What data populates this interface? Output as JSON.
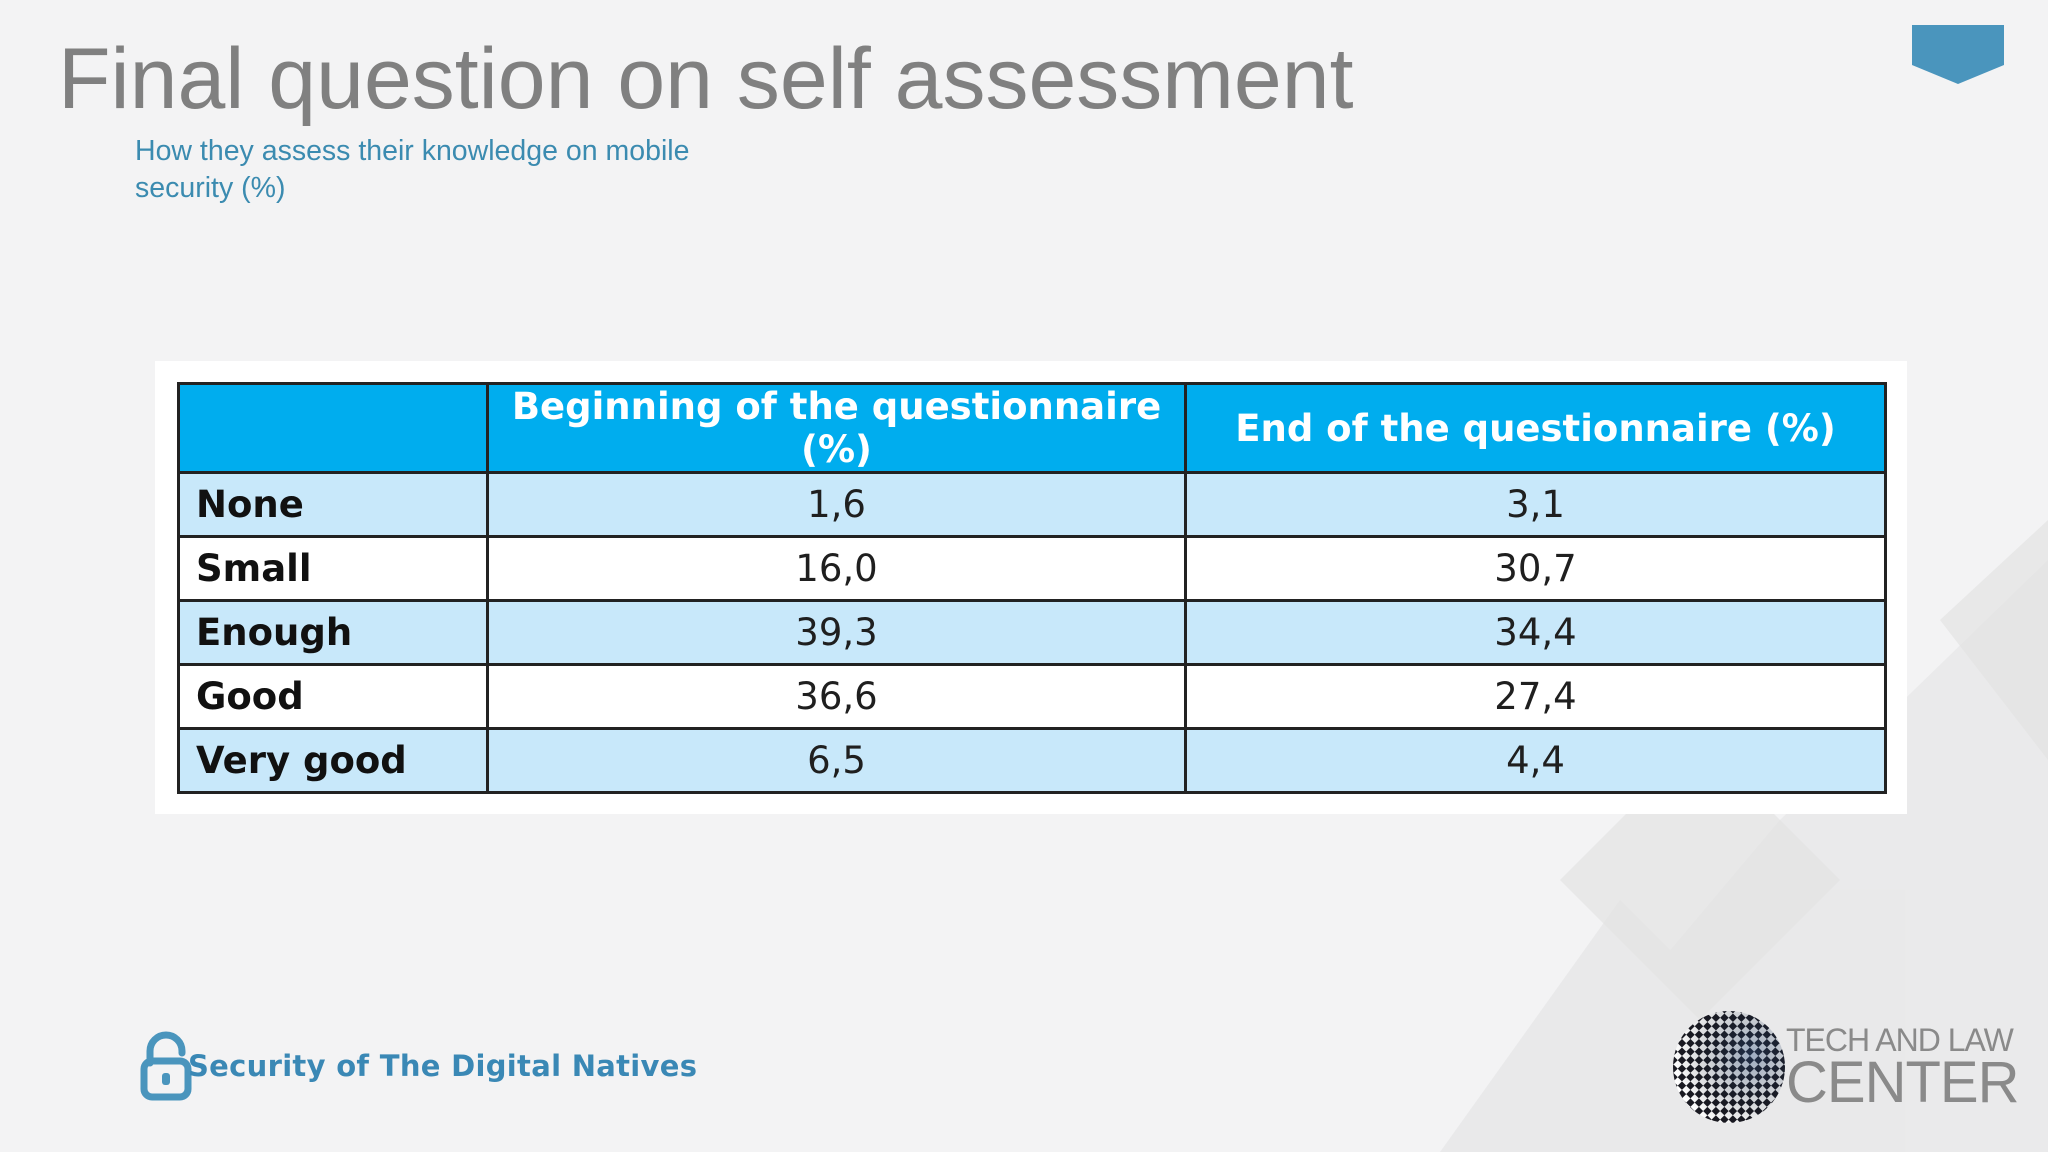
{
  "slide": {
    "title": "Final question on self assessment",
    "subtitle": "How they assess their knowledge on mobile security (%)"
  },
  "table": {
    "headers": [
      "",
      "Beginning of the questionnaire (%)",
      "End of the questionnaire (%)"
    ],
    "rows": [
      {
        "label": "None",
        "begin": "1,6",
        "end": "3,1"
      },
      {
        "label": "Small",
        "begin": "16,0",
        "end": "30,7"
      },
      {
        "label": "Enough",
        "begin": "39,3",
        "end": "34,4"
      },
      {
        "label": "Good",
        "begin": "36,6",
        "end": "27,4"
      },
      {
        "label": "Very good",
        "begin": "6,5",
        "end": "4,4"
      }
    ]
  },
  "chart_data": {
    "type": "table",
    "columns": [
      "",
      "Beginning of the questionnaire (%)",
      "End of the questionnaire (%)"
    ],
    "rows": [
      [
        "None",
        1.6,
        3.1
      ],
      [
        "Small",
        16.0,
        30.7
      ],
      [
        "Enough",
        39.3,
        34.4
      ],
      [
        "Good",
        36.6,
        27.4
      ],
      [
        "Very good",
        6.5,
        4.4
      ]
    ]
  },
  "footer": {
    "project_name": "Security of The Digital Natives",
    "project_icon": "unlocked-padlock-icon",
    "org_logo_line1": "TECH AND LAW",
    "org_logo_line2": "CENTER",
    "org_logo_icon": "checkered-globe-icon"
  },
  "colors": {
    "title": "#808080",
    "subtitle": "#3b8bb0",
    "header_fill": "#00adee",
    "row_shade": "#c8e8fa",
    "accent": "#4a95bd"
  }
}
